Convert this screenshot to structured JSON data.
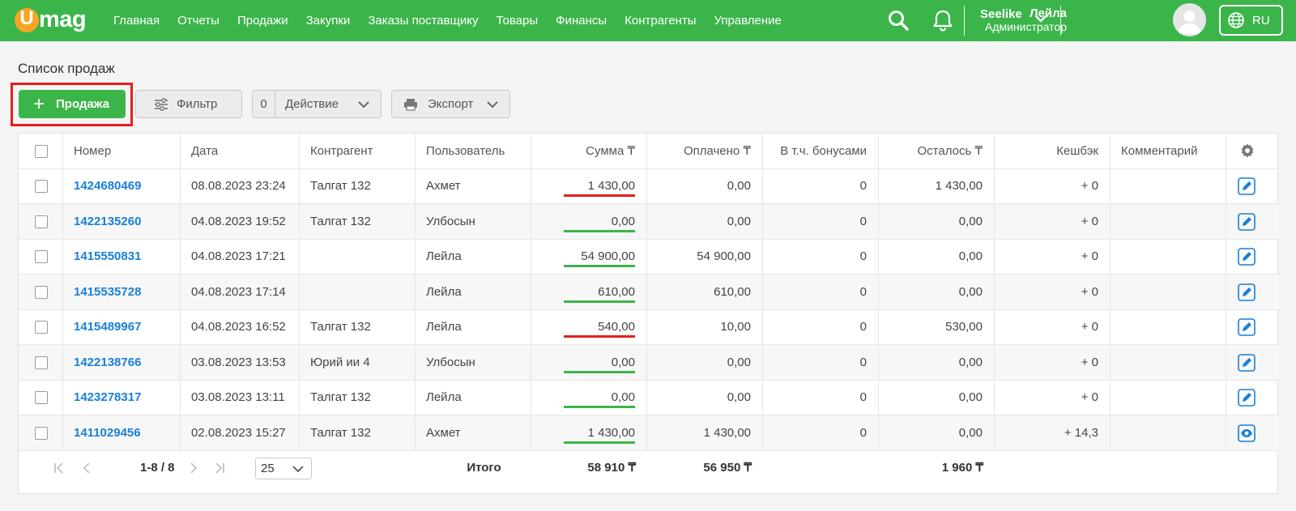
{
  "header": {
    "logo_u": "U",
    "logo_rest": "mag",
    "nav": [
      "Главная",
      "Отчеты",
      "Продажи",
      "Закупки",
      "Заказы поставщику",
      "Товары",
      "Финансы",
      "Контрагенты",
      "Управление"
    ],
    "company": "Seelike",
    "user_name": "Лейла",
    "user_role": "Администратор",
    "lang": "RU"
  },
  "page": {
    "title": "Список продаж"
  },
  "toolbar": {
    "add_label": "Продажа",
    "filter_label": "Фильтр",
    "action_count": "0",
    "action_label": "Действие",
    "export_label": "Экспорт"
  },
  "table": {
    "headers": {
      "number": "Номер",
      "date": "Дата",
      "counterparty": "Контрагент",
      "user": "Пользователь",
      "sum": "Сумма ₸",
      "paid": "Оплачено ₸",
      "bonus": "В т.ч. бонусами",
      "remaining": "Осталось ₸",
      "cashback": "Кешбэк",
      "comment": "Комментарий"
    },
    "rows": [
      {
        "number": "1424680469",
        "date": "08.08.2023 23:24",
        "counterparty": "Талгат 132",
        "user": "Ахмет",
        "sum": "1 430,00",
        "sum_status": "red",
        "paid": "0,00",
        "bonus": "0",
        "remaining": "1 430,00",
        "cashback": "+ 0",
        "comment": "",
        "action_icon": "edit-icon"
      },
      {
        "number": "1422135260",
        "date": "04.08.2023 19:52",
        "counterparty": "Талгат 132",
        "user": "Улбосын",
        "sum": "0,00",
        "sum_status": "green",
        "paid": "0,00",
        "bonus": "0",
        "remaining": "0,00",
        "cashback": "+ 0",
        "comment": "",
        "action_icon": "edit-icon"
      },
      {
        "number": "1415550831",
        "date": "04.08.2023 17:21",
        "counterparty": "",
        "user": "Лейла",
        "sum": "54 900,00",
        "sum_status": "green",
        "paid": "54 900,00",
        "bonus": "0",
        "remaining": "0,00",
        "cashback": "+ 0",
        "comment": "",
        "action_icon": "edit-icon"
      },
      {
        "number": "1415535728",
        "date": "04.08.2023 17:14",
        "counterparty": "",
        "user": "Лейла",
        "sum": "610,00",
        "sum_status": "green",
        "paid": "610,00",
        "bonus": "0",
        "remaining": "0,00",
        "cashback": "+ 0",
        "comment": "",
        "action_icon": "edit-icon"
      },
      {
        "number": "1415489967",
        "date": "04.08.2023 16:52",
        "counterparty": "Талгат 132",
        "user": "Лейла",
        "sum": "540,00",
        "sum_status": "red",
        "paid": "10,00",
        "bonus": "0",
        "remaining": "530,00",
        "cashback": "+ 0",
        "comment": "",
        "action_icon": "edit-icon"
      },
      {
        "number": "1422138766",
        "date": "03.08.2023 13:53",
        "counterparty": "Юрий ии 4",
        "user": "Улбосын",
        "sum": "0,00",
        "sum_status": "green",
        "paid": "0,00",
        "bonus": "0",
        "remaining": "0,00",
        "cashback": "+ 0",
        "comment": "",
        "action_icon": "edit-icon"
      },
      {
        "number": "1423278317",
        "date": "03.08.2023 13:11",
        "counterparty": "Талгат 132",
        "user": "Лейла",
        "sum": "0,00",
        "sum_status": "green",
        "paid": "0,00",
        "bonus": "0",
        "remaining": "0,00",
        "cashback": "+ 0",
        "comment": "",
        "action_icon": "edit-icon"
      },
      {
        "number": "1411029456",
        "date": "02.08.2023 15:27",
        "counterparty": "Талгат 132",
        "user": "Ахмет",
        "sum": "1 430,00",
        "sum_status": "green",
        "paid": "1 430,00",
        "bonus": "0",
        "remaining": "0,00",
        "cashback": "+ 14,3",
        "comment": "",
        "action_icon": "view-icon"
      }
    ],
    "footer": {
      "range": "1-8 / 8",
      "per_page": "25",
      "total_label": "Итого",
      "total_sum": "58 910 ₸",
      "total_paid": "56 950 ₸",
      "total_remaining": "1 960 ₸"
    }
  },
  "colors": {
    "brand": "#3bb54a",
    "link": "#1a7fd6",
    "status_red": "#e3201b",
    "status_green": "#3bb54a",
    "highlight": "#e3201b"
  }
}
